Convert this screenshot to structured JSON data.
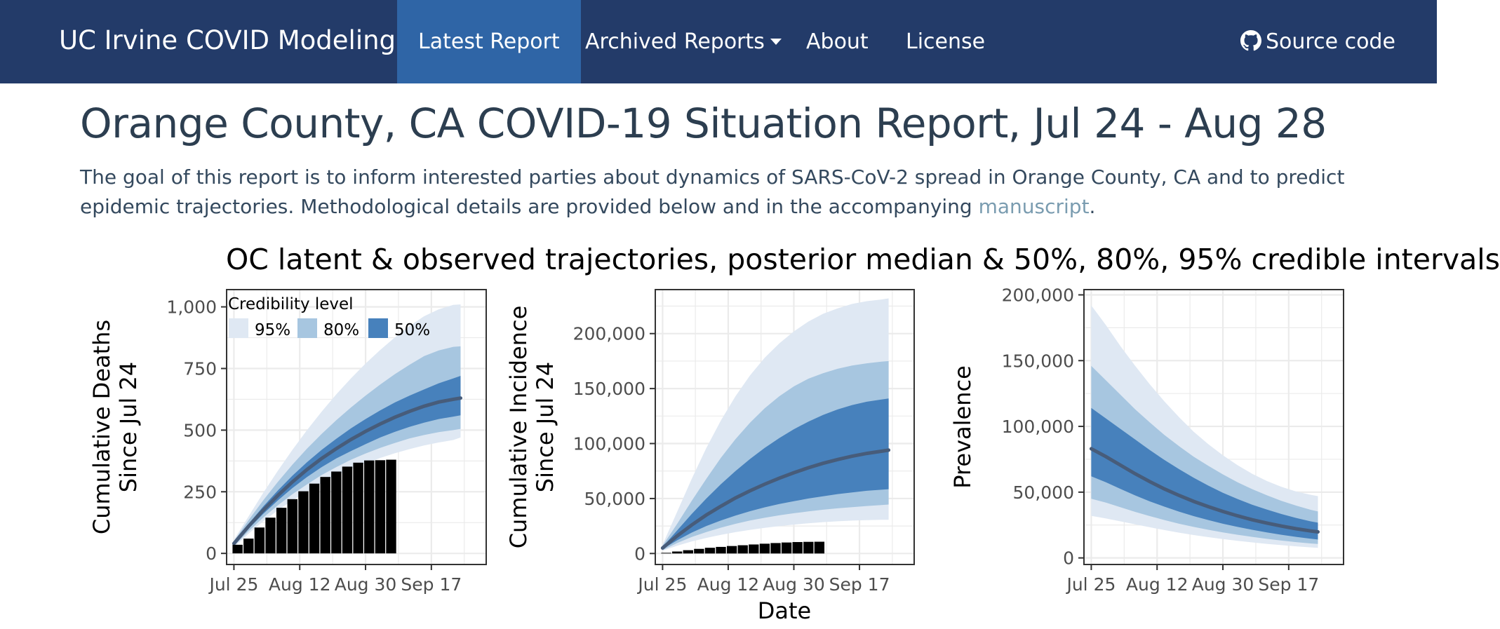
{
  "navbar": {
    "brand": "UC Irvine COVID Modeling",
    "links": [
      {
        "label": "Latest Report",
        "active": true
      },
      {
        "label": "Archived Reports",
        "dropdown": true
      },
      {
        "label": "About"
      },
      {
        "label": "License"
      }
    ],
    "source_code": "Source code",
    "source_icon": "github-icon",
    "bg_color": "#233b69",
    "active_color": "#2f65a6"
  },
  "report": {
    "title": "Orange County, CA COVID-19 Situation Report, Jul 24 - Aug 28",
    "intro_before_link": "The goal of this report is to inform interested parties about dynamics of SARS-CoV-2 spread in Orange County, CA and to predict epidemic trajectories. Methodological details are provided below and in the accompanying ",
    "intro_link": "manuscript",
    "intro_after_link": "."
  },
  "figure": {
    "title": "OC latent & observed trajectories, posterior median & 50%, 80%, 95% credible intervals",
    "xlabel": "Date",
    "legend": {
      "title": "Credibility level",
      "entries": [
        {
          "label": "95%",
          "color": "#dfe8f3"
        },
        {
          "label": "80%",
          "color": "#a7c6e0"
        },
        {
          "label": "50%",
          "color": "#4781bc"
        }
      ]
    },
    "median_color": "#475c7a",
    "observed_color": "#000000"
  },
  "chart_data": [
    {
      "type": "area",
      "ylabel": "Cumulative Deaths\nSince Jul 24",
      "xticks": [
        "Jul 25",
        "Aug 12",
        "Aug 30",
        "Sep 17"
      ],
      "yticks": [
        "0",
        "250",
        "500",
        "750",
        "1,000"
      ],
      "ylim": [
        -45,
        1070
      ],
      "band_days": [
        0,
        4,
        8,
        12,
        16,
        20,
        24,
        28,
        32,
        36,
        40,
        44,
        48,
        52,
        56,
        60,
        62
      ],
      "median": [
        40,
        110,
        175,
        235,
        290,
        340,
        385,
        425,
        462,
        495,
        525,
        552,
        576,
        597,
        614,
        625,
        630
      ],
      "ci50": [
        [
          35,
          100,
          160,
          215,
          265,
          310,
          350,
          385,
          415,
          443,
          470,
          493,
          513,
          530,
          545,
          555,
          560
        ],
        [
          45,
          120,
          190,
          255,
          315,
          370,
          420,
          465,
          507,
          545,
          580,
          612,
          640,
          665,
          690,
          710,
          720
        ]
      ],
      "ci80": [
        [
          30,
          90,
          145,
          195,
          240,
          280,
          318,
          350,
          380,
          405,
          428,
          448,
          466,
          480,
          492,
          500,
          505
        ],
        [
          50,
          135,
          215,
          290,
          360,
          425,
          485,
          540,
          592,
          640,
          685,
          727,
          765,
          800,
          823,
          838,
          840
        ]
      ],
      "ci95": [
        [
          25,
          80,
          130,
          175,
          215,
          250,
          285,
          315,
          342,
          365,
          387,
          406,
          423,
          438,
          450,
          460,
          470
        ],
        [
          55,
          150,
          245,
          335,
          420,
          500,
          575,
          645,
          710,
          770,
          825,
          876,
          922,
          962,
          990,
          1008,
          1010
        ]
      ],
      "observed_days": [
        1,
        4,
        7,
        10,
        13,
        16,
        19,
        22,
        25,
        28,
        31,
        34,
        37,
        40,
        43
      ],
      "observed": [
        35,
        60,
        105,
        145,
        185,
        220,
        252,
        283,
        310,
        332,
        352,
        368,
        377,
        378,
        380
      ]
    },
    {
      "type": "area",
      "ylabel": "Cumulative Incidence\nSince Jul 24",
      "xticks": [
        "Jul 25",
        "Aug 12",
        "Aug 30",
        "Sep 17"
      ],
      "yticks": [
        "0",
        "50,000",
        "100,000",
        "150,000",
        "200,000"
      ],
      "ylim": [
        -10000,
        240000
      ],
      "band_days": [
        0,
        4,
        8,
        12,
        16,
        20,
        24,
        28,
        32,
        36,
        40,
        44,
        48,
        52,
        56,
        60,
        62
      ],
      "median": [
        5000,
        16000,
        26000,
        35000,
        43000,
        50500,
        57000,
        63000,
        68500,
        73500,
        78000,
        82000,
        85500,
        88500,
        91000,
        93000,
        94000
      ],
      "ci50": [
        [
          4000,
          12000,
          19000,
          25000,
          30000,
          34500,
          38500,
          42000,
          45000,
          47500,
          50000,
          52000,
          54000,
          55500,
          57000,
          58000,
          58500
        ],
        [
          6000,
          21000,
          36000,
          50000,
          63000,
          75000,
          86000,
          96000,
          105000,
          113000,
          120000,
          126000,
          131000,
          135000,
          138000,
          140000,
          141000
        ]
      ],
      "ci80": [
        [
          3000,
          9500,
          15000,
          19500,
          23500,
          27000,
          30000,
          32500,
          34700,
          36600,
          38300,
          39800,
          41100,
          42200,
          43200,
          44000,
          44500
        ]
      ],
      "ci80_upper": [
        7000,
        27000,
        48000,
        68000,
        87000,
        104000,
        119000,
        132000,
        143000,
        152000,
        159000,
        164000,
        168000,
        171000,
        173000,
        174500,
        175000
      ],
      "ci95": [
        [
          2500,
          7000,
          11000,
          14200,
          17000,
          19400,
          21500,
          23300,
          24900,
          26300,
          27500,
          28500,
          29300,
          29900,
          30300,
          30600,
          30700
        ],
        [
          8000,
          38000,
          68000,
          96000,
          121000,
          143000,
          162000,
          178000,
          191000,
          202000,
          211000,
          218000,
          223000,
          227000,
          229500,
          231000,
          232000
        ]
      ],
      "observed_days": [
        1,
        4,
        7,
        10,
        13,
        16,
        19,
        22,
        25,
        28,
        31,
        34,
        37,
        40,
        43
      ],
      "observed": [
        600,
        1800,
        3000,
        4200,
        5200,
        6000,
        6800,
        7500,
        8200,
        8900,
        9500,
        10000,
        10400,
        10600,
        10700
      ]
    },
    {
      "type": "area",
      "ylabel": "Prevalence",
      "xticks": [
        "Jul 25",
        "Aug 12",
        "Aug 30",
        "Sep 17"
      ],
      "yticks": [
        "0",
        "50,000",
        "100,000",
        "150,000",
        "200,000"
      ],
      "ylim": [
        -5000,
        204000
      ],
      "band_days": [
        0,
        4,
        8,
        12,
        16,
        20,
        24,
        28,
        32,
        36,
        40,
        44,
        48,
        52,
        56,
        60,
        62
      ],
      "median": [
        83000,
        77000,
        70500,
        64000,
        58000,
        52500,
        47500,
        43000,
        39000,
        35300,
        32000,
        29000,
        26500,
        24200,
        22200,
        20500,
        19800
      ],
      "ci50": [
        [
          62000,
          57500,
          52500,
          47500,
          43000,
          39000,
          35200,
          31800,
          28800,
          26000,
          23600,
          21400,
          19400,
          17600,
          16000,
          14600,
          14000
        ],
        [
          114000,
          106000,
          98000,
          90000,
          82000,
          74500,
          67500,
          61000,
          55000,
          49500,
          44800,
          40500,
          36800,
          33400,
          30400,
          27800,
          26800
        ]
      ],
      "ci80": [
        [
          45000,
          42000,
          38500,
          35000,
          31800,
          28800,
          26000,
          23600,
          21400,
          19400,
          17600,
          16000,
          14500,
          13200,
          12000,
          11000,
          10600
        ],
        [
          146000,
          135000,
          124000,
          113000,
          103000,
          93500,
          85000,
          77000,
          70000,
          63500,
          57500,
          52300,
          47600,
          43400,
          39800,
          36600,
          35300
        ]
      ],
      "ci95": [
        [
          32000,
          30000,
          27800,
          25500,
          23300,
          21200,
          19200,
          17400,
          15800,
          14300,
          13000,
          11800,
          10700,
          9700,
          8800,
          8000,
          7700
        ],
        [
          192000,
          177000,
          161000,
          146000,
          132000,
          119000,
          107000,
          96000,
          86500,
          78000,
          70500,
          64000,
          58500,
          54000,
          50500,
          48000,
          47000
        ]
      ],
      "observed_days": [],
      "observed": []
    }
  ]
}
